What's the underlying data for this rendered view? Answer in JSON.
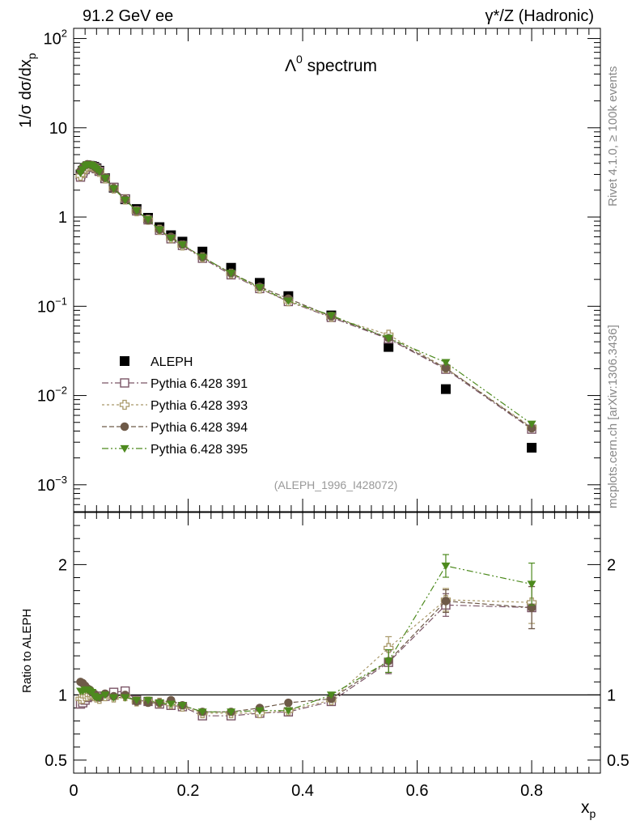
{
  "header": {
    "left": "91.2 GeV ee",
    "right": "γ*/Z (Hadronic)"
  },
  "side_text": {
    "upper": "Rivet 4.1.0, ≥ 100k events",
    "lower": "mcplots.cern.ch [arXiv:1306.3436]"
  },
  "chart_data": [
    {
      "type": "scatter",
      "title": "Λ0 spectrum",
      "title_main": "Λ",
      "title_sup": "0",
      "title_rest": " spectrum",
      "ylabel": "1/σ dσ/dx_p",
      "ylabel_main": "1/σ  dσ/dx",
      "ylabel_sub": "p",
      "yscale": "log",
      "ylim": [
        0.0005,
        130
      ],
      "xlim": [
        0,
        0.92
      ],
      "yticks": [
        {
          "v": 100,
          "base": "10",
          "exp": "2"
        },
        {
          "v": 10,
          "base": "10",
          "exp": ""
        },
        {
          "v": 1,
          "base": "1",
          "exp": ""
        },
        {
          "v": 0.1,
          "base": "10",
          "exp": "−1"
        },
        {
          "v": 0.01,
          "base": "10",
          "exp": "−2"
        },
        {
          "v": 0.001,
          "base": "10",
          "exp": "−3"
        }
      ],
      "analysis_id": "(ALEPH_1996_I428072)",
      "legend_position": "lower-left",
      "x": [
        0.012,
        0.016,
        0.02,
        0.024,
        0.028,
        0.032,
        0.036,
        0.04,
        0.045,
        0.055,
        0.07,
        0.09,
        0.11,
        0.13,
        0.15,
        0.17,
        0.19,
        0.225,
        0.275,
        0.325,
        0.375,
        0.45,
        0.55,
        0.65,
        0.8
      ],
      "series": [
        {
          "name": "ALEPH",
          "marker": "square-filled",
          "color": "#000000",
          "values": [
            3.0,
            3.3,
            3.55,
            3.7,
            3.75,
            3.72,
            3.65,
            3.52,
            3.3,
            2.72,
            2.13,
            1.58,
            1.23,
            0.98,
            0.77,
            0.625,
            0.53,
            0.41,
            0.27,
            0.183,
            0.13,
            0.079,
            0.035,
            0.0118,
            0.0026
          ]
        },
        {
          "name": "Pythia 6.428 391",
          "marker": "square-open",
          "color": "#7a5566",
          "values": [
            2.8,
            3.1,
            3.4,
            3.62,
            3.72,
            3.7,
            3.6,
            3.48,
            3.25,
            2.7,
            2.15,
            1.6,
            1.17,
            0.93,
            0.71,
            0.57,
            0.48,
            0.345,
            0.225,
            0.158,
            0.113,
            0.075,
            0.043,
            0.0197,
            0.0042
          ]
        },
        {
          "name": "Pythia 6.428 393",
          "marker": "cross-open",
          "color": "#a89868",
          "values": [
            2.9,
            3.2,
            3.5,
            3.68,
            3.76,
            3.72,
            3.6,
            3.45,
            3.2,
            2.7,
            2.08,
            1.57,
            1.16,
            0.93,
            0.72,
            0.58,
            0.48,
            0.353,
            0.232,
            0.158,
            0.114,
            0.076,
            0.048,
            0.0203,
            0.0044
          ]
        },
        {
          "name": "Pythia 6.428 394",
          "marker": "circle-filled",
          "color": "#6e5a48",
          "values": [
            3.3,
            3.6,
            3.8,
            3.9,
            3.88,
            3.8,
            3.68,
            3.5,
            3.25,
            2.74,
            2.1,
            1.58,
            1.17,
            0.92,
            0.72,
            0.6,
            0.49,
            0.355,
            0.235,
            0.165,
            0.122,
            0.077,
            0.044,
            0.0203,
            0.0043
          ]
        },
        {
          "name": "Pythia 6.428 395",
          "marker": "triangle-down-filled",
          "color": "#4d8a1e",
          "values": [
            3.1,
            3.4,
            3.7,
            3.85,
            3.85,
            3.78,
            3.62,
            3.45,
            3.22,
            2.72,
            2.08,
            1.55,
            1.18,
            0.94,
            0.72,
            0.58,
            0.49,
            0.355,
            0.235,
            0.162,
            0.115,
            0.079,
            0.044,
            0.0235,
            0.0048
          ]
        }
      ]
    },
    {
      "type": "line",
      "ylabel": "Ratio to ALEPH",
      "xlabel": "x_p",
      "xlabel_main": "x",
      "xlabel_sub": "p",
      "ylim": [
        0.4,
        2.4
      ],
      "xlim": [
        0,
        0.92
      ],
      "yticks": [
        {
          "v": 0.5,
          "label": "0.5"
        },
        {
          "v": 1,
          "label": "1"
        },
        {
          "v": 2,
          "label": "2"
        }
      ],
      "xticks": [
        {
          "v": 0,
          "label": "0"
        },
        {
          "v": 0.2,
          "label": "0.2"
        },
        {
          "v": 0.4,
          "label": "0.4"
        },
        {
          "v": 0.6,
          "label": "0.6"
        },
        {
          "v": 0.8,
          "label": "0.8"
        }
      ],
      "reference_line": 1,
      "x": [
        0.012,
        0.016,
        0.02,
        0.024,
        0.028,
        0.032,
        0.036,
        0.04,
        0.045,
        0.055,
        0.07,
        0.09,
        0.11,
        0.13,
        0.15,
        0.17,
        0.19,
        0.225,
        0.275,
        0.325,
        0.375,
        0.45,
        0.55,
        0.65,
        0.8
      ],
      "series": [
        {
          "name": "Pythia 6.428 391",
          "marker": "square-open",
          "color": "#7a5566",
          "dash": "8,3,2,3",
          "values": [
            0.93,
            0.94,
            0.96,
            0.98,
            0.99,
            1.0,
            0.99,
            0.99,
            0.99,
            0.99,
            1.02,
            1.03,
            0.96,
            0.95,
            0.93,
            0.92,
            0.91,
            0.84,
            0.84,
            0.86,
            0.87,
            0.95,
            1.25,
            1.69,
            1.67
          ]
        },
        {
          "name": "Pythia 6.428 393",
          "marker": "cross-open",
          "color": "#a89868",
          "dash": "3,3",
          "values": [
            0.97,
            0.97,
            0.99,
            0.99,
            1.0,
            1.0,
            0.99,
            0.98,
            0.97,
            0.99,
            0.98,
            0.99,
            0.95,
            0.95,
            0.94,
            0.93,
            0.91,
            0.86,
            0.86,
            0.86,
            0.88,
            0.96,
            1.36,
            1.73,
            1.71
          ]
        },
        {
          "name": "Pythia 6.428 394",
          "marker": "circle-filled",
          "color": "#6e5a48",
          "dash": "6,3",
          "values": [
            1.1,
            1.09,
            1.07,
            1.05,
            1.04,
            1.02,
            1.01,
            0.99,
            0.98,
            1.01,
            0.99,
            1.0,
            0.95,
            0.94,
            0.94,
            0.96,
            0.92,
            0.87,
            0.87,
            0.9,
            0.94,
            0.97,
            1.26,
            1.72,
            1.67
          ]
        },
        {
          "name": "Pythia 6.428 395",
          "marker": "triangle-down-filled",
          "color": "#4d8a1e",
          "dash": "8,3,2,3,2,3",
          "values": [
            1.03,
            1.03,
            1.04,
            1.04,
            1.03,
            1.02,
            0.99,
            0.98,
            0.98,
            1.0,
            0.98,
            0.98,
            0.96,
            0.96,
            0.94,
            0.93,
            0.92,
            0.87,
            0.87,
            0.88,
            0.88,
            1.0,
            1.26,
            1.99,
            1.85
          ]
        }
      ]
    }
  ]
}
